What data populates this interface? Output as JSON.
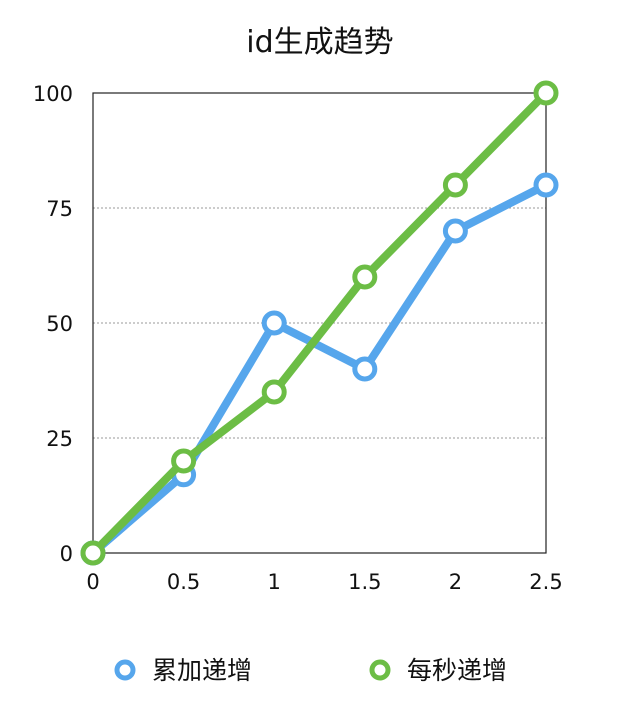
{
  "chart_data": {
    "type": "line",
    "title": "id生成趋势",
    "xlabel": "",
    "ylabel": "",
    "x": [
      0,
      0.5,
      1,
      1.5,
      2,
      2.5
    ],
    "x_tick_labels": [
      "0",
      "0.5",
      "1",
      "1.5",
      "2",
      "2.5"
    ],
    "y_ticks": [
      0,
      25,
      50,
      75,
      100
    ],
    "y_tick_labels": [
      "0",
      "25",
      "50",
      "75",
      "100"
    ],
    "xlim": [
      0,
      2.5
    ],
    "ylim": [
      0,
      100
    ],
    "grid": "horizontal dotted",
    "legend_position": "bottom",
    "series": [
      {
        "name": "累加递增",
        "color": "#56a6ec",
        "values": [
          0,
          17,
          50,
          40,
          70,
          80
        ]
      },
      {
        "name": "每秒递增",
        "color": "#6cbd45",
        "values": [
          0,
          20,
          35,
          60,
          80,
          100
        ]
      }
    ]
  }
}
